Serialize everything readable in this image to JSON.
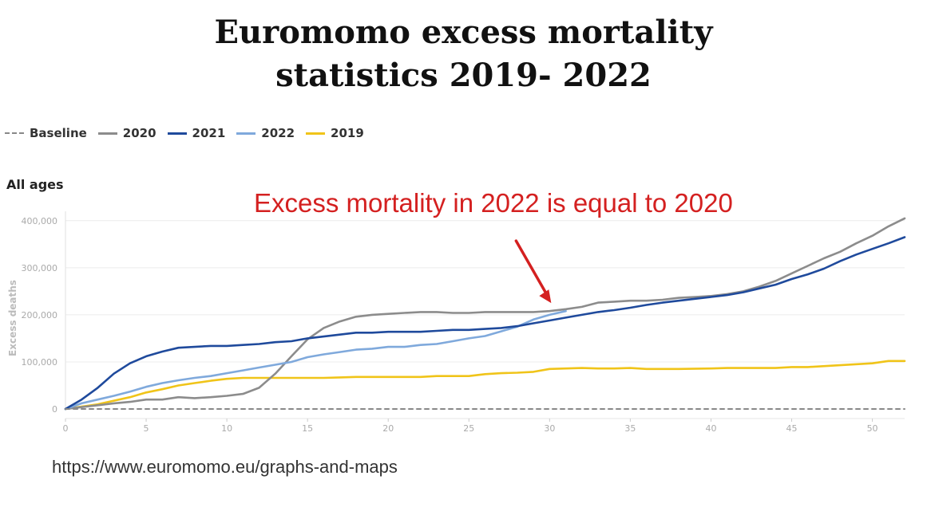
{
  "title_line1": "Euromomo excess mortality",
  "title_line2": "statistics 2019- 2022",
  "panel_title": "All ages",
  "annotation": "Excess mortality in 2022 is equal to 2020",
  "source": "https://www.euromomo.eu/graphs-and-maps",
  "legend": [
    {
      "label": "Baseline",
      "color": "#888888",
      "style": "dashed"
    },
    {
      "label": "2020",
      "color": "#8c8c8c",
      "style": "solid"
    },
    {
      "label": "2021",
      "color": "#1f4a9c",
      "style": "solid"
    },
    {
      "label": "2022",
      "color": "#7fa9dc",
      "style": "solid"
    },
    {
      "label": "2019",
      "color": "#f0c419",
      "style": "solid"
    }
  ],
  "chart_data": {
    "type": "line",
    "ylabel": "Excess deaths",
    "xlabel": "",
    "xlim": [
      0,
      52
    ],
    "ylim": [
      0,
      420000
    ],
    "xticks": [
      0,
      5,
      10,
      15,
      20,
      25,
      30,
      35,
      40,
      45,
      50
    ],
    "yticks": [
      0,
      100000,
      200000,
      300000,
      400000
    ],
    "ytick_labels": [
      "0",
      "100,000",
      "200,000",
      "300,000",
      "400,000"
    ],
    "grid": true,
    "annotation_arrow_target": {
      "x": 30,
      "y": 225000
    },
    "series": [
      {
        "name": "Baseline",
        "color": "#888888",
        "dashed": true,
        "x": [
          0,
          52
        ],
        "y": [
          0,
          0
        ]
      },
      {
        "name": "2019",
        "color": "#f0c419",
        "x": [
          0,
          2,
          4,
          5,
          6,
          7,
          8,
          9,
          10,
          11,
          12,
          14,
          16,
          17,
          18,
          20,
          22,
          23,
          25,
          26,
          27,
          28,
          29,
          30,
          31,
          32,
          33,
          34,
          35,
          36,
          38,
          40,
          41,
          44,
          45,
          46,
          48,
          50,
          51,
          52
        ],
        "y": [
          0,
          10000,
          25000,
          35000,
          42000,
          50000,
          55000,
          60000,
          64000,
          66000,
          66000,
          66000,
          66000,
          67000,
          68000,
          68000,
          68000,
          70000,
          70000,
          74000,
          76000,
          77000,
          79000,
          85000,
          86000,
          87000,
          86000,
          86000,
          87000,
          85000,
          85000,
          86000,
          87000,
          87000,
          89000,
          89000,
          93000,
          97000,
          102000,
          102000
        ]
      },
      {
        "name": "2020",
        "color": "#8c8c8c",
        "x": [
          0,
          2,
          3,
          4,
          5,
          6,
          7,
          8,
          9,
          10,
          11,
          12,
          13,
          14,
          15,
          16,
          17,
          18,
          19,
          20,
          21,
          22,
          23,
          24,
          25,
          26,
          27,
          28,
          29,
          30,
          31,
          32,
          33,
          34,
          35,
          36,
          37,
          38,
          39,
          40,
          41,
          42,
          43,
          44,
          45,
          46,
          47,
          48,
          49,
          50,
          51,
          52
        ],
        "y": [
          0,
          8000,
          12000,
          15000,
          20000,
          20000,
          25000,
          23000,
          25000,
          28000,
          32000,
          45000,
          75000,
          112000,
          148000,
          172000,
          186000,
          196000,
          200000,
          202000,
          204000,
          206000,
          206000,
          204000,
          204000,
          206000,
          206000,
          206000,
          206000,
          208000,
          212000,
          217000,
          226000,
          228000,
          230000,
          230000,
          232000,
          236000,
          238000,
          240000,
          244000,
          250000,
          260000,
          272000,
          288000,
          304000,
          320000,
          334000,
          352000,
          368000,
          388000,
          405000
        ]
      },
      {
        "name": "2021",
        "color": "#1f4a9c",
        "x": [
          0,
          1,
          2,
          3,
          4,
          5,
          6,
          7,
          8,
          9,
          10,
          11,
          12,
          13,
          14,
          15,
          16,
          17,
          18,
          19,
          20,
          21,
          22,
          23,
          24,
          25,
          26,
          27,
          28,
          29,
          30,
          31,
          32,
          33,
          34,
          35,
          36,
          37,
          38,
          39,
          40,
          41,
          42,
          43,
          44,
          45,
          46,
          47,
          48,
          49,
          50,
          51,
          52
        ],
        "y": [
          0,
          20000,
          45000,
          75000,
          97000,
          112000,
          122000,
          130000,
          132000,
          134000,
          134000,
          136000,
          138000,
          142000,
          144000,
          150000,
          154000,
          158000,
          162000,
          162000,
          164000,
          164000,
          164000,
          166000,
          168000,
          168000,
          170000,
          172000,
          176000,
          182000,
          188000,
          194000,
          200000,
          206000,
          210000,
          215000,
          221000,
          226000,
          230000,
          234000,
          238000,
          242000,
          248000,
          256000,
          264000,
          276000,
          286000,
          298000,
          314000,
          328000,
          340000,
          352000,
          365000
        ]
      },
      {
        "name": "2022",
        "color": "#7fa9dc",
        "x": [
          0,
          1,
          2,
          3,
          4,
          5,
          6,
          7,
          8,
          9,
          10,
          11,
          12,
          13,
          14,
          15,
          16,
          17,
          18,
          19,
          20,
          21,
          22,
          23,
          24,
          25,
          26,
          27,
          28,
          29,
          30,
          31
        ],
        "y": [
          0,
          12000,
          20000,
          28000,
          37000,
          47000,
          55000,
          61000,
          66000,
          70000,
          76000,
          82000,
          88000,
          94000,
          100000,
          110000,
          116000,
          121000,
          126000,
          128000,
          132000,
          132000,
          136000,
          138000,
          144000,
          150000,
          155000,
          165000,
          175000,
          190000,
          200000,
          208000
        ]
      }
    ]
  }
}
